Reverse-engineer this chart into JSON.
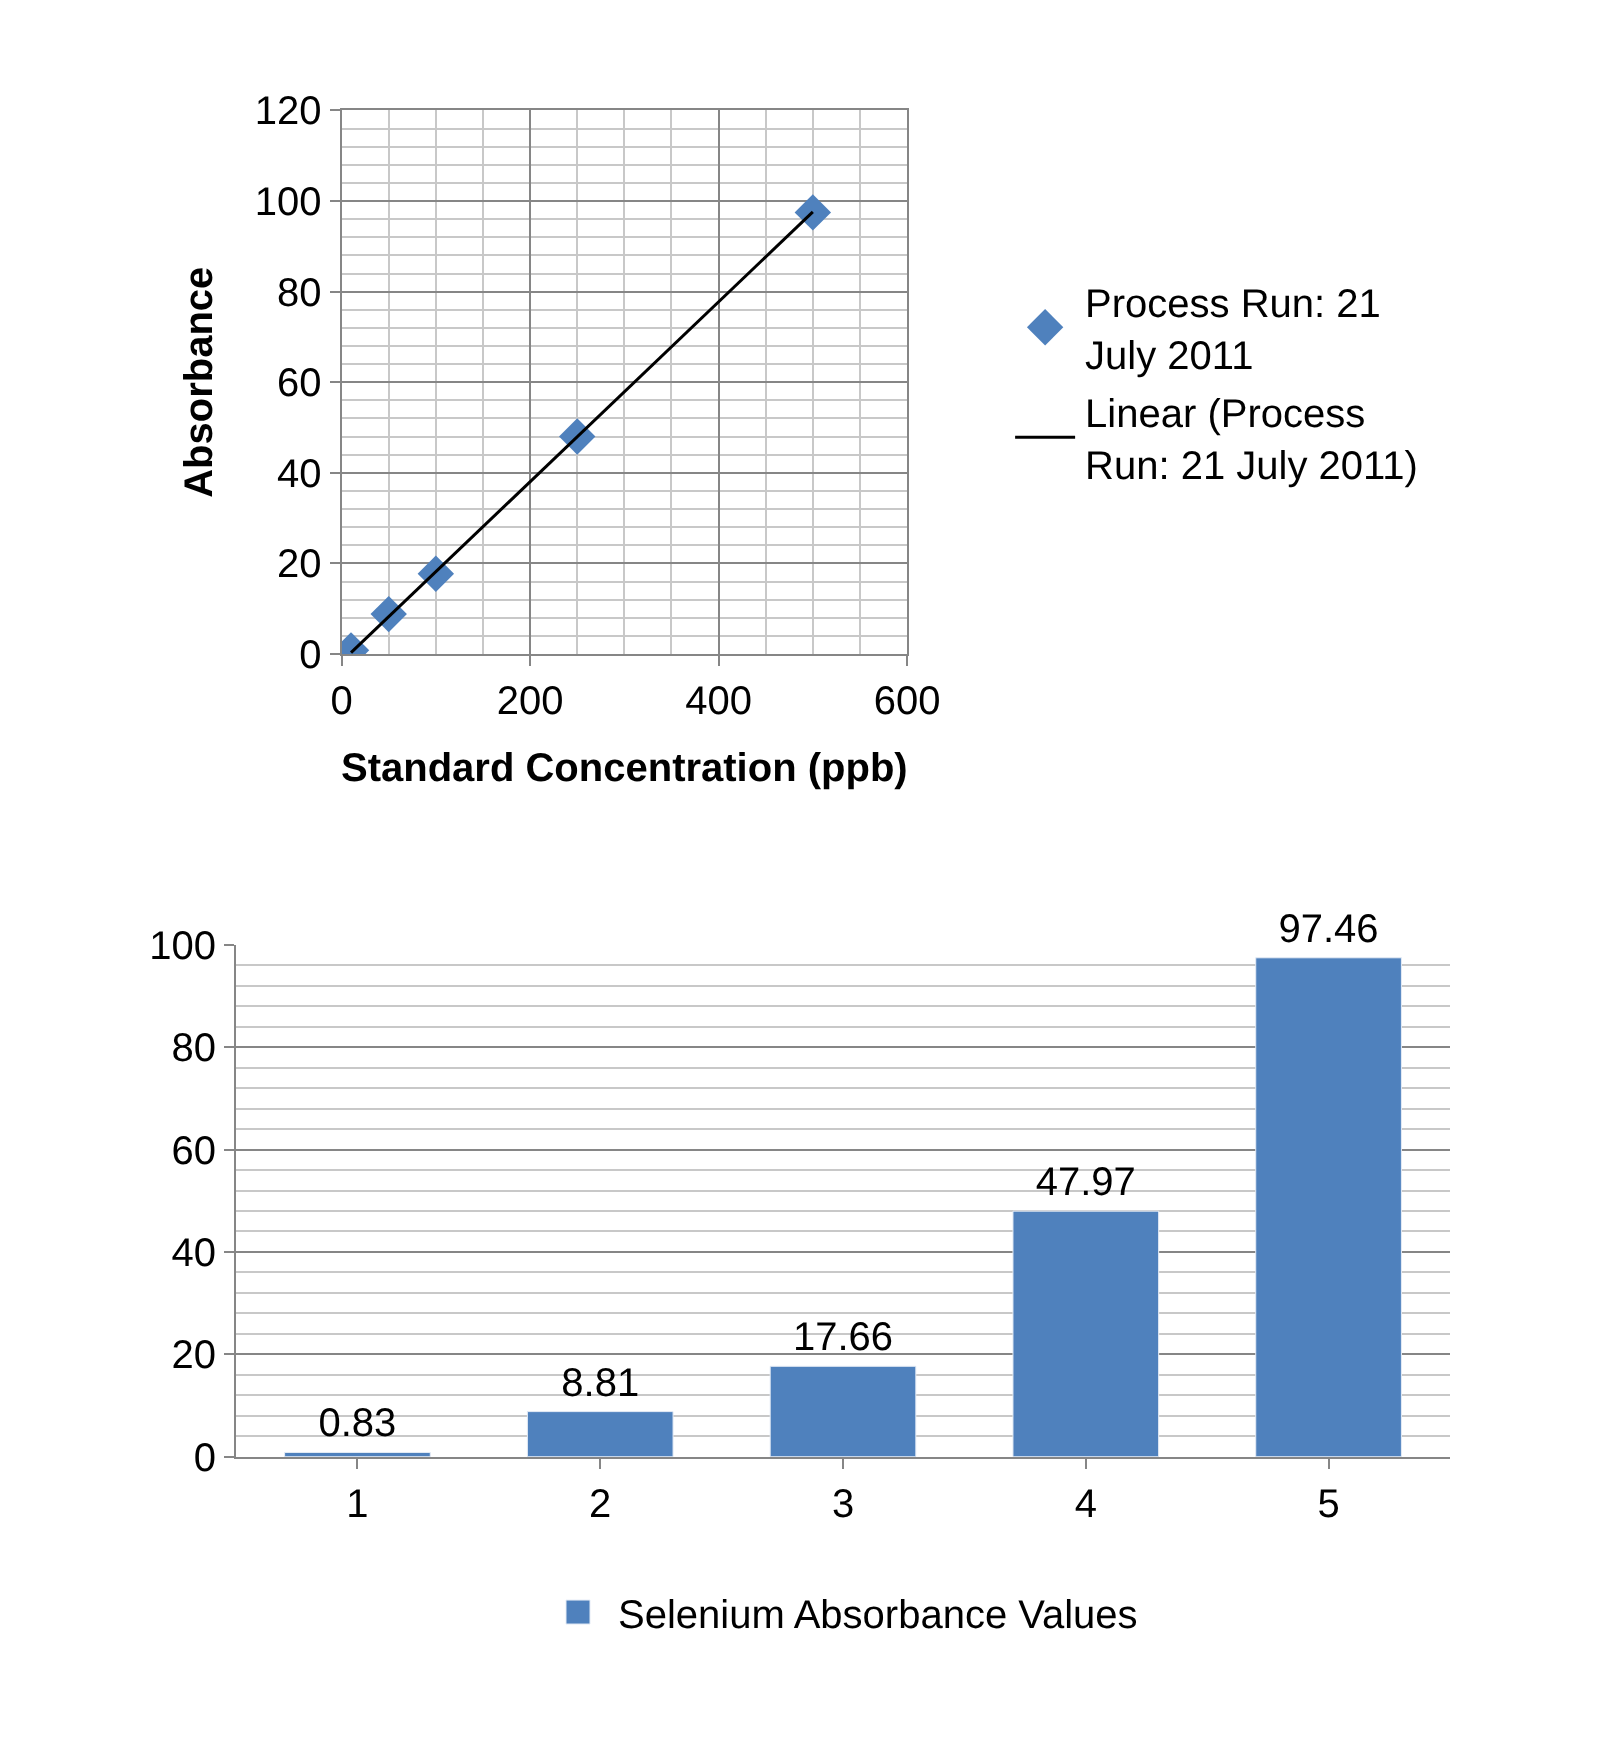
{
  "chart_data": [
    {
      "type": "scatter",
      "xlabel": "Standard Concentration (ppb)",
      "ylabel": "Absorbance",
      "xlim": [
        0,
        600
      ],
      "xticks": [
        0,
        200,
        400,
        600
      ],
      "ylim": [
        0,
        120
      ],
      "yticks": [
        0,
        20,
        40,
        60,
        80,
        100,
        120
      ],
      "grid": true,
      "legend": "right",
      "series": [
        {
          "name": "Process Run: 21 July 2011",
          "color": "#4f81bd",
          "marker": "diamond",
          "x": [
            10,
            50,
            100,
            250,
            500
          ],
          "values": [
            0.8,
            8.8,
            17.7,
            48.0,
            97.5
          ]
        },
        {
          "name": "Linear (Process Run: 21 July 2011)",
          "type": "line",
          "color": "#000000",
          "x": [
            10,
            500
          ],
          "values": [
            0.3,
            97.6
          ]
        }
      ]
    },
    {
      "type": "bar",
      "categories": [
        "1",
        "2",
        "3",
        "4",
        "5"
      ],
      "ylim": [
        0,
        100
      ],
      "yticks": [
        0,
        20,
        40,
        60,
        80,
        100
      ],
      "grid": "y",
      "legend": "bottom",
      "data_labels": true,
      "series": [
        {
          "name": "Selenium Absorbance Values",
          "color": "#4f81bd",
          "values": [
            0.83,
            8.81,
            17.66,
            47.97,
            97.46
          ]
        }
      ]
    }
  ]
}
